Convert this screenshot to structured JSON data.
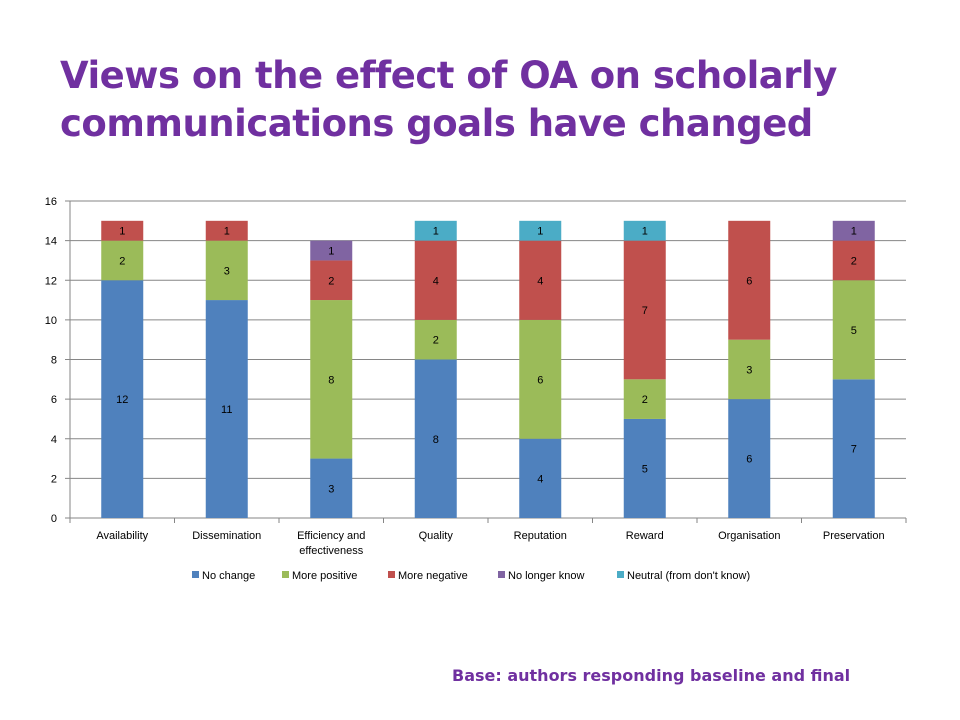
{
  "slide": {
    "title_line1": "Views on the effect of OA on scholarly",
    "title_line2": "communications goals have changed",
    "footnote": "Base: authors responding baseline and final"
  },
  "chart_data": {
    "type": "bar",
    "stacked": true,
    "title": "",
    "xlabel": "",
    "ylabel": "",
    "ylim": [
      0,
      16
    ],
    "yticks": [
      0,
      2,
      4,
      6,
      8,
      10,
      12,
      14,
      16
    ],
    "grid": true,
    "legend_position": "bottom",
    "categories": [
      [
        "Availability"
      ],
      [
        "Dissemination"
      ],
      [
        "Efficiency and",
        "effectiveness"
      ],
      [
        "Quality"
      ],
      [
        "Reputation"
      ],
      [
        "Reward"
      ],
      [
        "Organisation"
      ],
      [
        "Preservation"
      ]
    ],
    "series": [
      {
        "name": "No change",
        "color": "#4f81bd",
        "values": [
          12,
          11,
          3,
          8,
          4,
          5,
          6,
          7
        ]
      },
      {
        "name": "More positive",
        "color": "#9bbb59",
        "values": [
          2,
          3,
          8,
          2,
          6,
          2,
          3,
          5
        ]
      },
      {
        "name": "More negative",
        "color": "#c0504d",
        "values": [
          1,
          1,
          2,
          4,
          4,
          7,
          6,
          2
        ]
      },
      {
        "name": "No longer know",
        "color": "#8064a2",
        "values": [
          0,
          0,
          1,
          0,
          0,
          0,
          0,
          1
        ]
      },
      {
        "name": "Neutral (from don't know)",
        "color": "#4bacc6",
        "values": [
          0,
          0,
          0,
          1,
          1,
          1,
          0,
          0
        ]
      }
    ]
  }
}
